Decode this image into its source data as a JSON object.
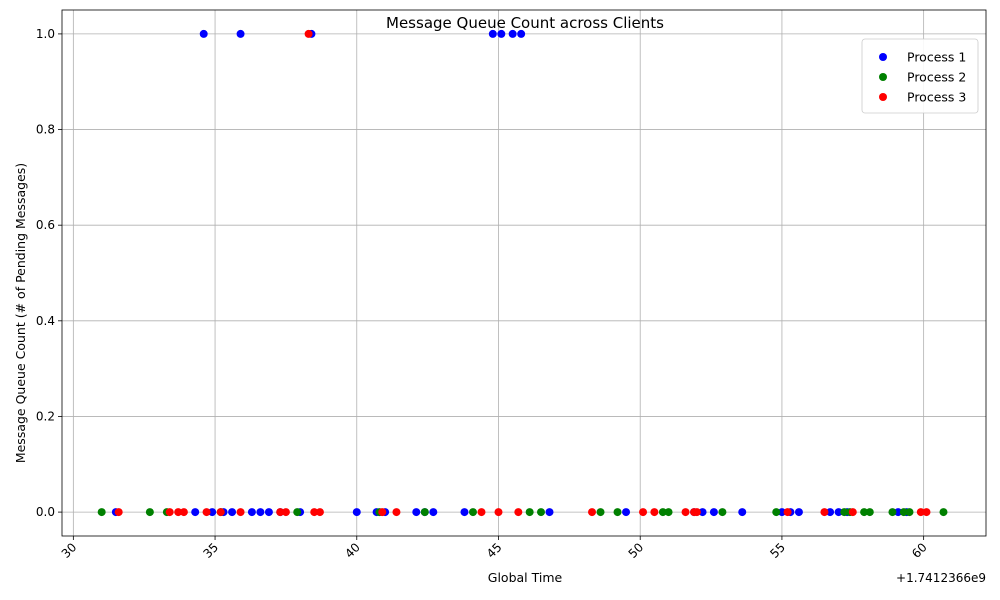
{
  "chart_data": {
    "type": "scatter",
    "title": "Message Queue Count across Clients",
    "xlabel": "Global Time",
    "ylabel": "Message Queue Count (# of Pending Messages)",
    "offset_label": "+1.7412366e9",
    "xlim": [
      29.6,
      62.2
    ],
    "ylim": [
      -0.05,
      1.05
    ],
    "xticks": [
      30,
      35,
      40,
      45,
      50,
      55,
      60
    ],
    "yticks": [
      0.0,
      0.2,
      0.4,
      0.6,
      0.8,
      1.0
    ],
    "ytick_labels": [
      "0.0",
      "0.2",
      "0.4",
      "0.6",
      "0.8",
      "1.0"
    ],
    "grid": true,
    "legend": "top-right",
    "series": [
      {
        "name": "Process 1",
        "color": "#0000ff",
        "points": [
          [
            31.5,
            0
          ],
          [
            34.3,
            0
          ],
          [
            34.6,
            1
          ],
          [
            34.9,
            0
          ],
          [
            35.3,
            0
          ],
          [
            35.6,
            0
          ],
          [
            35.9,
            1
          ],
          [
            36.3,
            0
          ],
          [
            36.6,
            0
          ],
          [
            36.9,
            0
          ],
          [
            37.3,
            0
          ],
          [
            38.0,
            0
          ],
          [
            38.4,
            1
          ],
          [
            40.0,
            0
          ],
          [
            40.7,
            0
          ],
          [
            41.0,
            0
          ],
          [
            42.1,
            0
          ],
          [
            42.4,
            0
          ],
          [
            42.7,
            0
          ],
          [
            43.8,
            0
          ],
          [
            44.8,
            1
          ],
          [
            45.1,
            1
          ],
          [
            45.5,
            1
          ],
          [
            45.8,
            1
          ],
          [
            46.8,
            0
          ],
          [
            49.5,
            0
          ],
          [
            51.9,
            0
          ],
          [
            52.2,
            0
          ],
          [
            52.6,
            0
          ],
          [
            53.6,
            0
          ],
          [
            55.0,
            0
          ],
          [
            55.3,
            0
          ],
          [
            55.6,
            0
          ],
          [
            56.7,
            0
          ],
          [
            57.0,
            0
          ],
          [
            57.3,
            0
          ],
          [
            59.1,
            0
          ],
          [
            59.4,
            0
          ]
        ]
      },
      {
        "name": "Process 2",
        "color": "#008000",
        "points": [
          [
            31.0,
            0
          ],
          [
            32.7,
            0
          ],
          [
            33.3,
            0
          ],
          [
            35.2,
            0
          ],
          [
            37.9,
            0
          ],
          [
            40.8,
            0
          ],
          [
            42.4,
            0
          ],
          [
            44.1,
            0
          ],
          [
            46.1,
            0
          ],
          [
            46.5,
            0
          ],
          [
            48.6,
            0
          ],
          [
            49.2,
            0
          ],
          [
            50.8,
            0
          ],
          [
            51.0,
            0
          ],
          [
            52.9,
            0
          ],
          [
            54.8,
            0
          ],
          [
            57.2,
            0
          ],
          [
            57.4,
            0
          ],
          [
            57.9,
            0
          ],
          [
            58.1,
            0
          ],
          [
            58.9,
            0
          ],
          [
            59.3,
            0
          ],
          [
            59.5,
            0
          ],
          [
            60.7,
            0
          ]
        ]
      },
      {
        "name": "Process 3",
        "color": "#ff0000",
        "points": [
          [
            31.6,
            0
          ],
          [
            33.4,
            0
          ],
          [
            33.7,
            0
          ],
          [
            33.9,
            0
          ],
          [
            34.7,
            0
          ],
          [
            35.2,
            0
          ],
          [
            35.9,
            0
          ],
          [
            37.3,
            0
          ],
          [
            37.5,
            0
          ],
          [
            38.3,
            1
          ],
          [
            38.5,
            0
          ],
          [
            38.7,
            0
          ],
          [
            40.9,
            0
          ],
          [
            41.4,
            0
          ],
          [
            44.4,
            0
          ],
          [
            45.0,
            0
          ],
          [
            45.7,
            0
          ],
          [
            48.3,
            0
          ],
          [
            50.1,
            0
          ],
          [
            50.5,
            0
          ],
          [
            51.6,
            0
          ],
          [
            51.9,
            0
          ],
          [
            52.0,
            0
          ],
          [
            55.2,
            0
          ],
          [
            56.5,
            0
          ],
          [
            57.5,
            0
          ],
          [
            59.9,
            0
          ],
          [
            60.1,
            0
          ]
        ]
      }
    ]
  }
}
